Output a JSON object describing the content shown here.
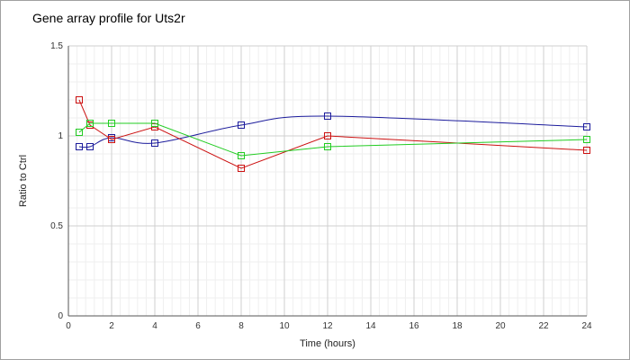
{
  "chart_data": {
    "type": "line",
    "title": "Gene array profile for Uts2r",
    "xlabel": "Time (hours)",
    "ylabel": "Ratio to Ctrl",
    "xlim": [
      0,
      24
    ],
    "ylim": [
      0,
      1.5
    ],
    "xticks": [
      0,
      2,
      4,
      6,
      8,
      10,
      12,
      14,
      16,
      18,
      20,
      22,
      24
    ],
    "xtick_labels": [
      "0",
      "2",
      "4",
      "6",
      "8",
      "10",
      "12",
      "14",
      "16",
      "18",
      "20",
      "22",
      "24"
    ],
    "yticks": [
      0,
      0.5,
      1,
      1.5
    ],
    "ytick_labels": [
      "0",
      "0.5",
      "1",
      "1.5"
    ],
    "grid": true,
    "legend": "none",
    "series": [
      {
        "color": "#1c1c9c",
        "x": [
          0.5,
          1,
          2,
          4,
          8,
          12,
          24
        ],
        "y": [
          0.94,
          0.94,
          0.99,
          0.96,
          1.06,
          1.11,
          1.05
        ],
        "curve": "smooth"
      },
      {
        "color": "#cc1111",
        "x": [
          0.5,
          1,
          2,
          4,
          8,
          12,
          24
        ],
        "y": [
          1.2,
          1.06,
          0.98,
          1.05,
          0.82,
          1.0,
          0.92
        ],
        "curve": "straight"
      },
      {
        "color": "#22cc22",
        "x": [
          0.5,
          1,
          2,
          4,
          8,
          12,
          24
        ],
        "y": [
          1.02,
          1.07,
          1.07,
          1.07,
          0.89,
          0.94,
          0.98
        ],
        "curve": "straight"
      }
    ]
  }
}
